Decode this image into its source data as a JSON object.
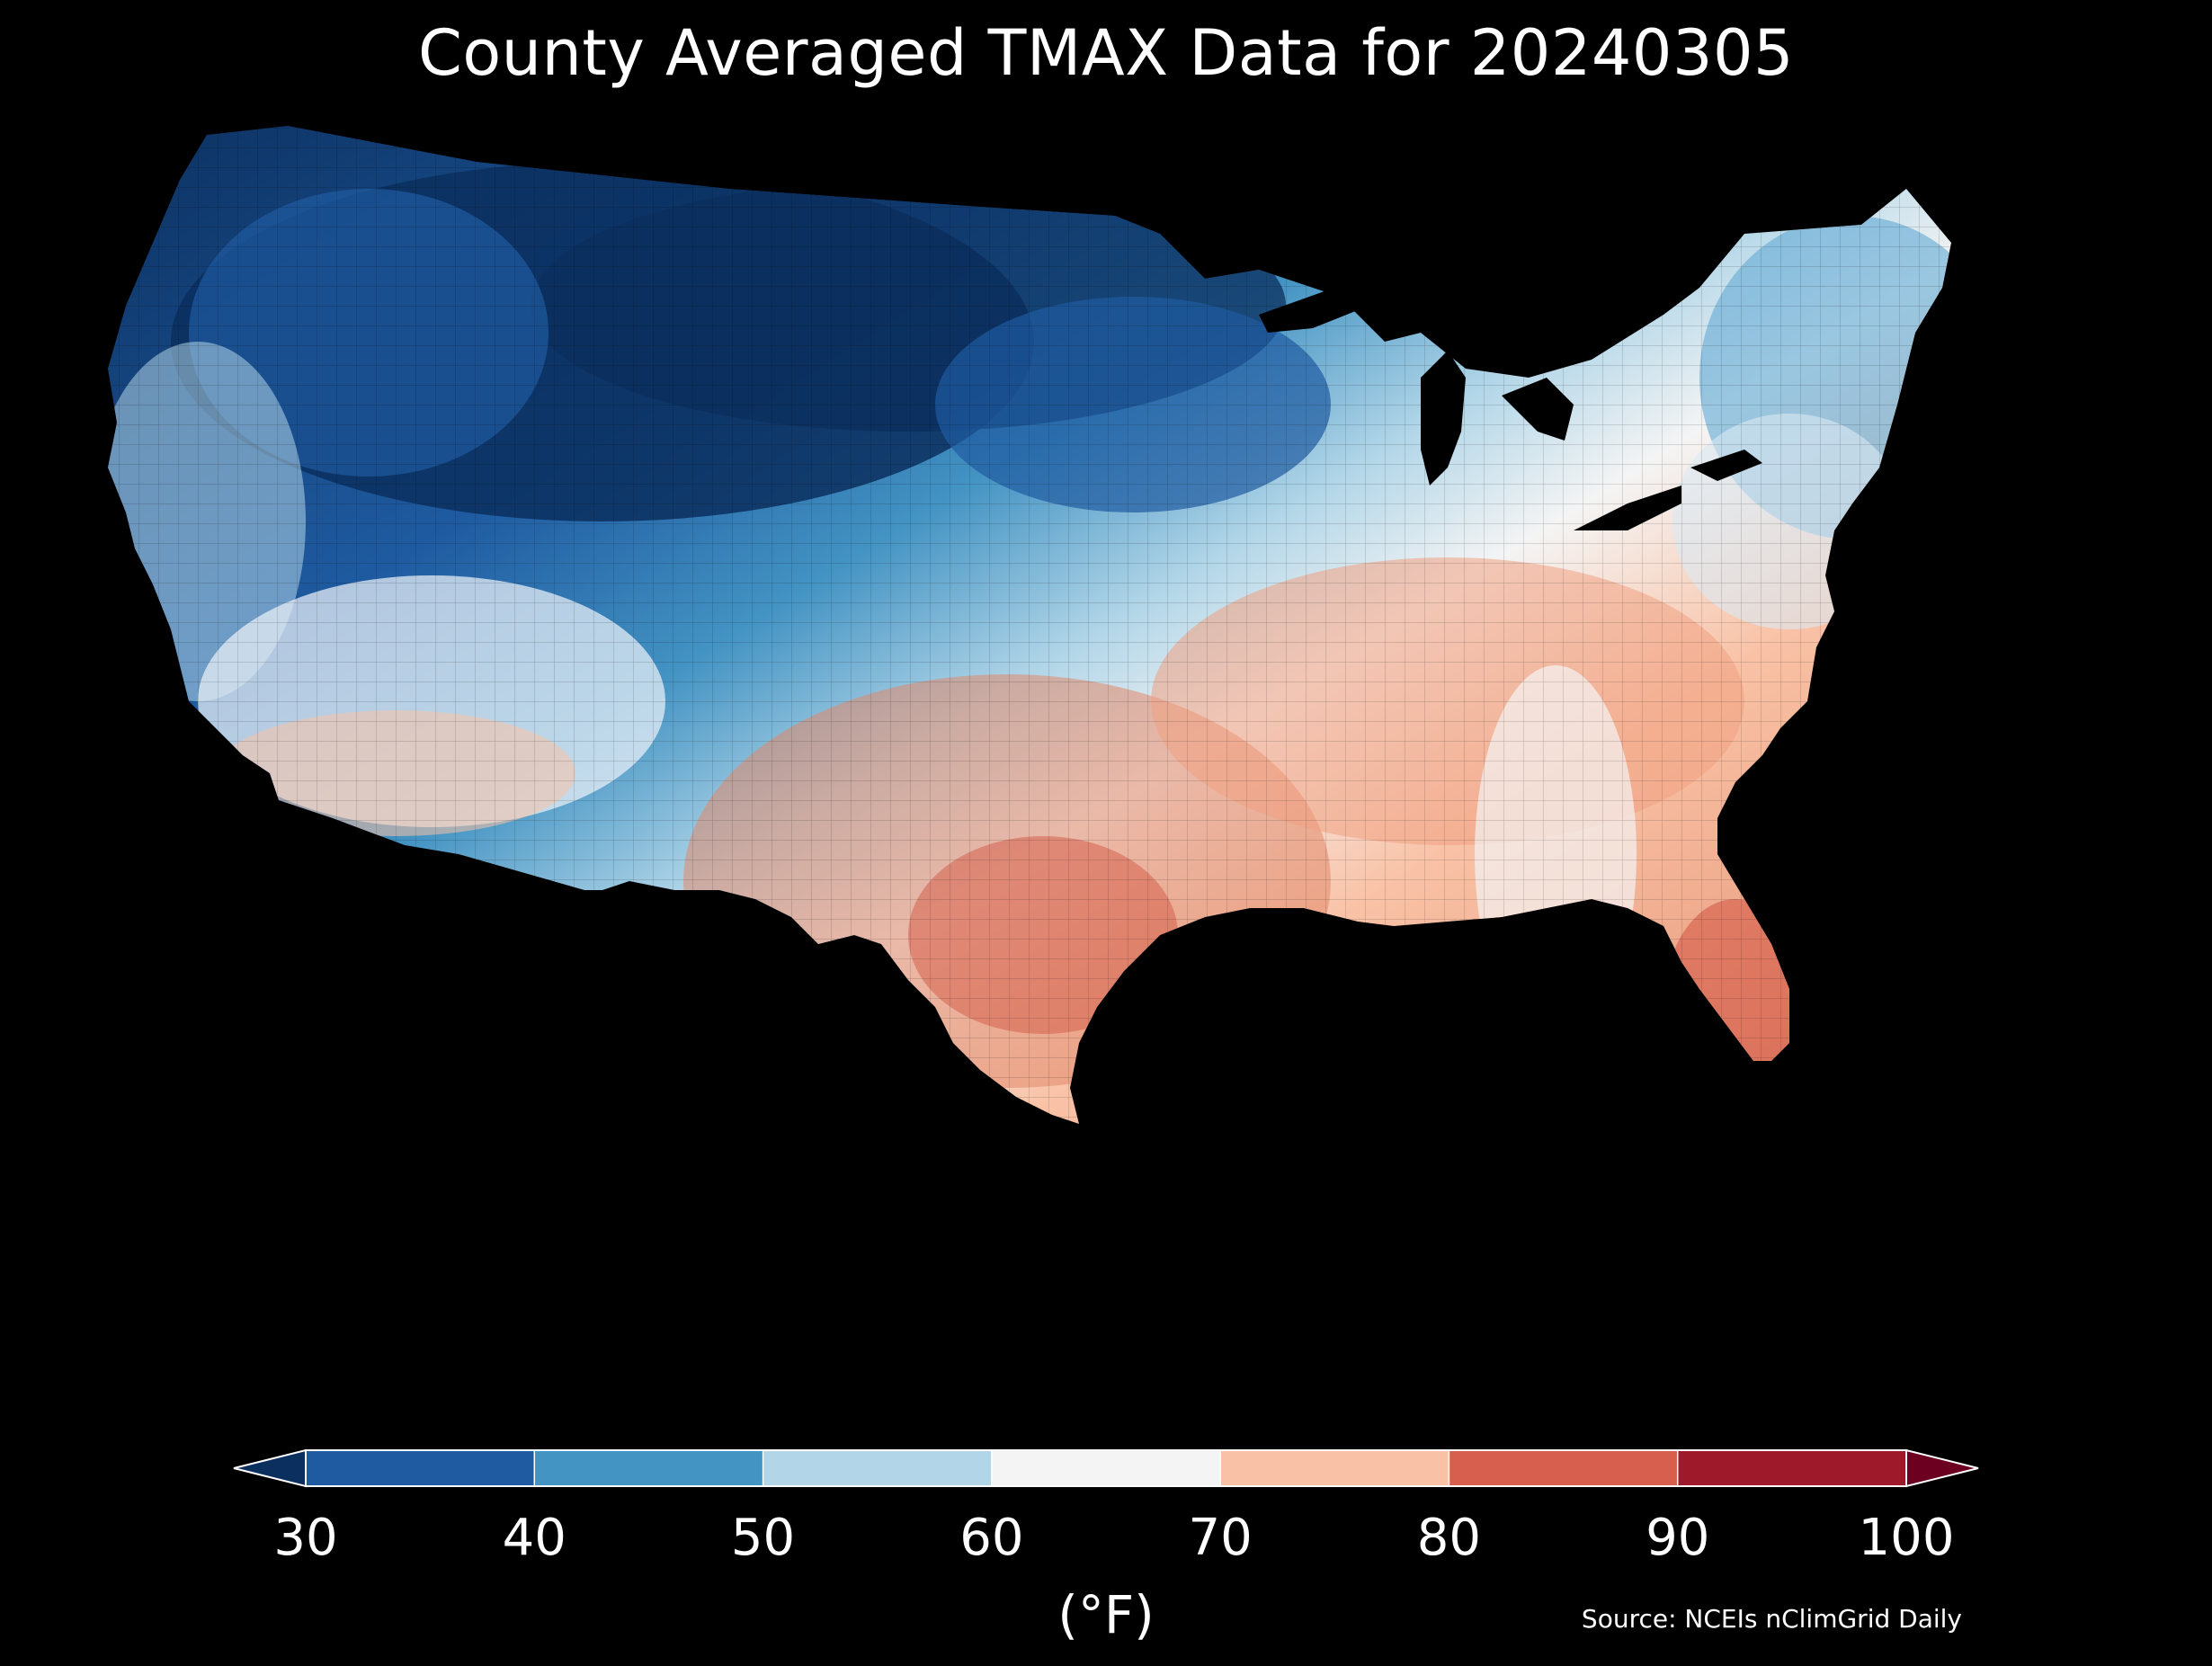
{
  "title": "County Averaged TMAX Data for 20240305",
  "colorbar": {
    "unit_label": "(°F)",
    "ticks": [
      "30",
      "40",
      "50",
      "60",
      "70",
      "80",
      "90",
      "100"
    ],
    "bins": [
      {
        "range": [
          30,
          40
        ],
        "color": "#1f5ba1"
      },
      {
        "range": [
          40,
          50
        ],
        "color": "#4393c3"
      },
      {
        "range": [
          50,
          60
        ],
        "color": "#b2d6e8"
      },
      {
        "range": [
          60,
          70
        ],
        "color": "#f4f4f4"
      },
      {
        "range": [
          70,
          80
        ],
        "color": "#f9c2a6"
      },
      {
        "range": [
          80,
          90
        ],
        "color": "#d6604d"
      },
      {
        "range": [
          90,
          100
        ],
        "color": "#9e1a2b"
      }
    ],
    "extend_low_color": "#0b2f5e",
    "extend_high_color": "#6b0020"
  },
  "source": "Source: NCEIs nClimGrid Daily",
  "map": {
    "region": "Contiguous United States",
    "variable": "TMAX",
    "date": "20240305",
    "colors": {
      "background": "#000000",
      "coldest": "#0b2f5e",
      "cold": "#1f5ba1",
      "cool": "#4393c3",
      "mild": "#b2d6e8",
      "neutral": "#f4f4f4",
      "warm": "#f9c2a6",
      "hot": "#d6604d"
    }
  }
}
